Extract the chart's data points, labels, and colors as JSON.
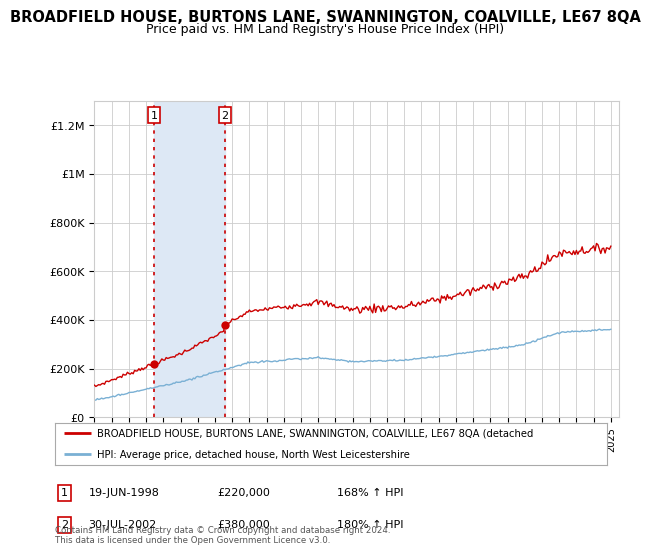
{
  "title": "BROADFIELD HOUSE, BURTONS LANE, SWANNINGTON, COALVILLE, LE67 8QA",
  "subtitle": "Price paid vs. HM Land Registry's House Price Index (HPI)",
  "title_fontsize": 10.5,
  "subtitle_fontsize": 9,
  "ylim": [
    0,
    1300000
  ],
  "yticks": [
    0,
    200000,
    400000,
    600000,
    800000,
    1000000,
    1200000
  ],
  "ytick_labels": [
    "£0",
    "£200K",
    "£400K",
    "£600K",
    "£800K",
    "£1M",
    "£1.2M"
  ],
  "legend_line1": "BROADFIELD HOUSE, BURTONS LANE, SWANNINGTON, COALVILLE, LE67 8QA (detached",
  "legend_line2": "HPI: Average price, detached house, North West Leicestershire",
  "legend_color1": "#cc0000",
  "legend_color2": "#7ab0d4",
  "transaction1_date": "19-JUN-1998",
  "transaction1_price": 220000,
  "transaction1_price_str": "£220,000",
  "transaction1_hpi": "168% ↑ HPI",
  "transaction1_x": 1998.47,
  "transaction2_date": "30-JUL-2002",
  "transaction2_price": 380000,
  "transaction2_price_str": "£380,000",
  "transaction2_hpi": "180% ↑ HPI",
  "transaction2_x": 2002.58,
  "footnote": "Contains HM Land Registry data © Crown copyright and database right 2024.\nThis data is licensed under the Open Government Licence v3.0.",
  "bg_color": "#ffffff",
  "grid_color": "#cccccc",
  "highlight_color": "#dde8f5",
  "vline_color": "#cc0000"
}
